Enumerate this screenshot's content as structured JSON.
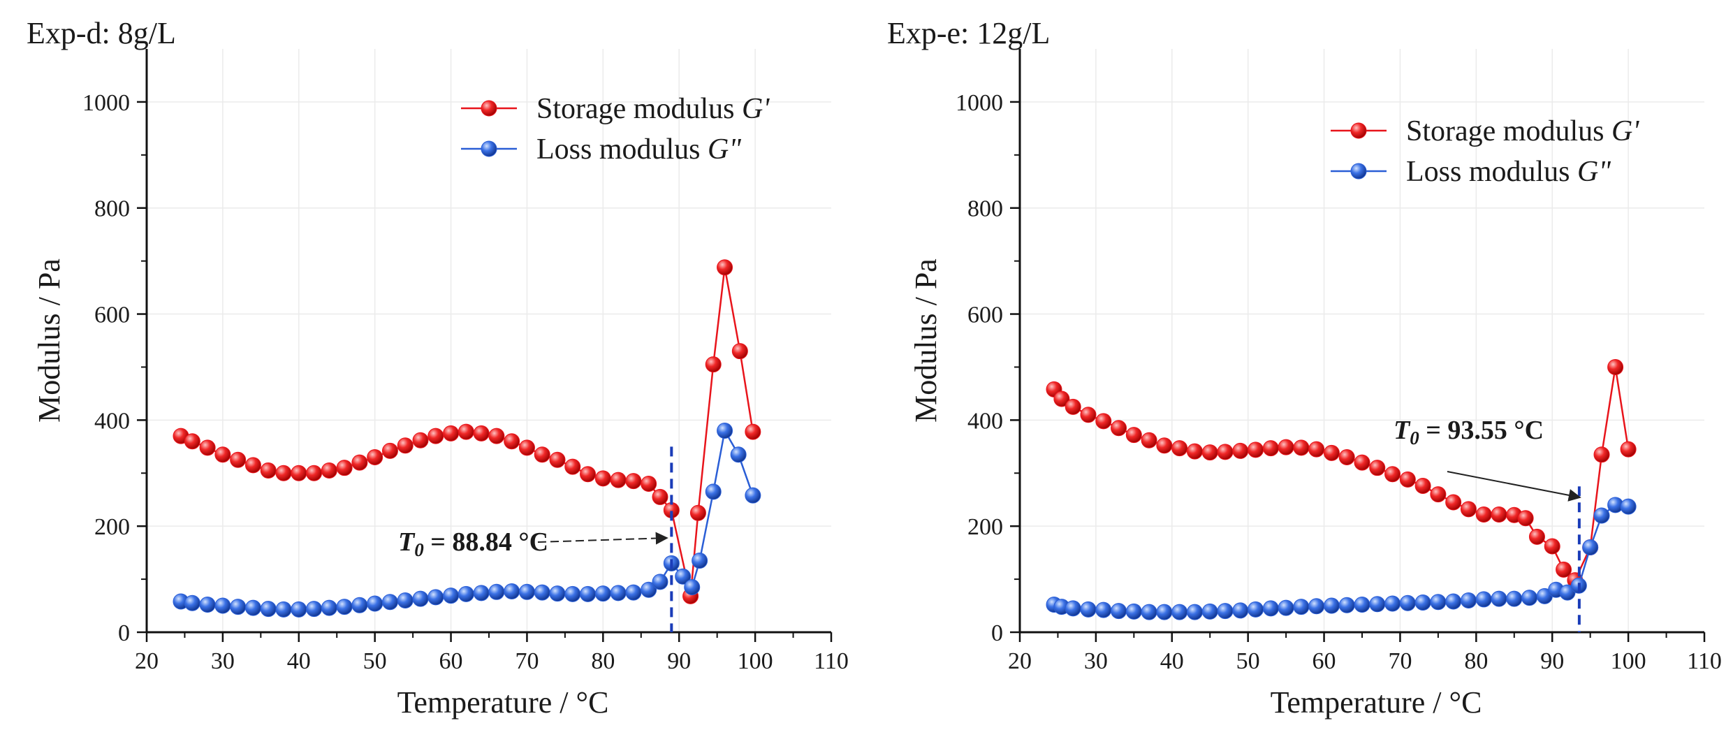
{
  "chart_data": [
    {
      "type": "scatter",
      "title": "Exp-d: 8g/L",
      "xlabel": "Temperature / °C",
      "ylabel": "Modulus  / Pa",
      "xlim": [
        20,
        110
      ],
      "ylim": [
        0,
        1100
      ],
      "xticks": [
        "20",
        "30",
        "40",
        "50",
        "60",
        "70",
        "80",
        "90",
        "100",
        "110"
      ],
      "yticks": [
        "0",
        "200",
        "400",
        "600",
        "800",
        "1000"
      ],
      "legend_position": "top-right",
      "series": [
        {
          "name": "Storage modulus G'",
          "legend_text": "Storage modulus ",
          "legend_symbol": "G'",
          "color": "#e8141b",
          "x": [
            24.5,
            26,
            28,
            30,
            32,
            34,
            36,
            38,
            40,
            42,
            44,
            46,
            48,
            50,
            52,
            54,
            56,
            58,
            60,
            62,
            64,
            66,
            68,
            70,
            72,
            74,
            76,
            78,
            80,
            82,
            84,
            86,
            87.5,
            89,
            91.5,
            92.5,
            94.5,
            96,
            98,
            99.7
          ],
          "y": [
            370,
            360,
            348,
            335,
            325,
            315,
            305,
            300,
            300,
            300,
            305,
            310,
            320,
            330,
            342,
            352,
            362,
            370,
            375,
            378,
            375,
            370,
            360,
            348,
            335,
            325,
            312,
            298,
            290,
            287,
            285,
            280,
            255,
            230,
            68,
            225,
            505,
            688,
            530,
            378
          ]
        },
        {
          "name": "Loss modulus G\"",
          "legend_text": "Loss modulus ",
          "legend_symbol": "G\"",
          "color": "#2a5ed6",
          "x": [
            24.5,
            26,
            28,
            30,
            32,
            34,
            36,
            38,
            40,
            42,
            44,
            46,
            48,
            50,
            52,
            54,
            56,
            58,
            60,
            62,
            64,
            66,
            68,
            70,
            72,
            74,
            76,
            78,
            80,
            82,
            84,
            86,
            87.5,
            89,
            90.5,
            91.7,
            92.7,
            94.5,
            96,
            97.8,
            99.7
          ],
          "y": [
            58,
            55,
            52,
            50,
            48,
            46,
            44,
            43,
            43,
            44,
            46,
            48,
            51,
            54,
            57,
            60,
            63,
            66,
            69,
            72,
            74,
            76,
            77,
            76,
            75,
            73,
            72,
            72,
            73,
            74,
            75,
            80,
            95,
            130,
            105,
            85,
            135,
            265,
            380,
            335,
            258
          ]
        }
      ],
      "annotation": {
        "symbol": "T",
        "subscript": "0",
        "text": " = 88.84 °C",
        "x": 89.0,
        "y_range": [
          0,
          350
        ]
      }
    },
    {
      "type": "scatter",
      "title": "Exp-e: 12g/L",
      "xlabel": "Temperature / °C",
      "ylabel": "Modulus  / Pa",
      "xlim": [
        20,
        110
      ],
      "ylim": [
        0,
        1100
      ],
      "xticks": [
        "20",
        "30",
        "40",
        "50",
        "60",
        "70",
        "80",
        "90",
        "100",
        "110"
      ],
      "yticks": [
        "0",
        "200",
        "400",
        "600",
        "800",
        "1000"
      ],
      "legend_position": "top-right",
      "series": [
        {
          "name": "Storage modulus G'",
          "legend_text": "Storage modulus ",
          "legend_symbol": "G'",
          "color": "#e8141b",
          "x": [
            24.5,
            25.5,
            27,
            29,
            31,
            33,
            35,
            37,
            39,
            41,
            43,
            45,
            47,
            49,
            51,
            53,
            55,
            57,
            59,
            61,
            63,
            65,
            67,
            69,
            71,
            73,
            75,
            77,
            79,
            81,
            83,
            85,
            86.5,
            88,
            90,
            91.5,
            93,
            95,
            96.5,
            98.3,
            100
          ],
          "y": [
            458,
            440,
            425,
            410,
            398,
            385,
            372,
            362,
            352,
            347,
            341,
            339,
            340,
            342,
            344,
            347,
            349,
            348,
            345,
            338,
            330,
            320,
            310,
            298,
            288,
            276,
            260,
            245,
            232,
            222,
            222,
            221,
            215,
            180,
            162,
            118,
            98,
            160,
            335,
            500,
            345
          ]
        },
        {
          "name": "Loss modulus G\"",
          "legend_text": "Loss modulus ",
          "legend_symbol": "G\"",
          "color": "#2a5ed6",
          "x": [
            24.5,
            25.5,
            27,
            29,
            31,
            33,
            35,
            37,
            39,
            41,
            43,
            45,
            47,
            49,
            51,
            53,
            55,
            57,
            59,
            61,
            63,
            65,
            67,
            69,
            71,
            73,
            75,
            77,
            79,
            81,
            83,
            85,
            87,
            89,
            90.5,
            92,
            93.5,
            95,
            96.5,
            98.3,
            100
          ],
          "y": [
            52,
            48,
            45,
            43,
            42,
            40,
            39,
            38,
            38,
            38,
            38,
            39,
            40,
            41,
            43,
            45,
            46,
            48,
            49,
            50,
            51,
            52,
            53,
            54,
            55,
            56,
            57,
            58,
            60,
            62,
            63,
            63,
            65,
            68,
            80,
            75,
            88,
            160,
            220,
            240,
            237
          ]
        }
      ],
      "annotation": {
        "symbol": "T",
        "subscript": "0",
        "text": " = 93.55 °C",
        "x": 93.55,
        "y_range": [
          0,
          275
        ]
      }
    }
  ]
}
